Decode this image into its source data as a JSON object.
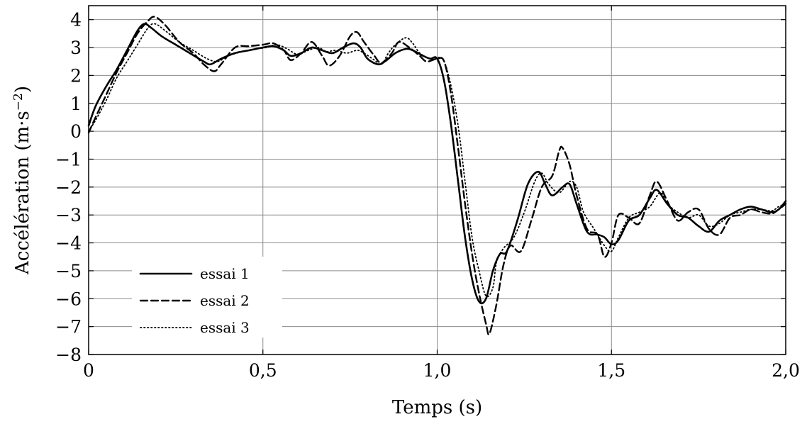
{
  "chart_data": {
    "type": "line",
    "xlabel": "Temps (s)",
    "ylabel_text": "Accélération (m·s",
    "ylabel_exponent": "−2",
    "ylabel_close": ")",
    "xlim": [
      0,
      2.0
    ],
    "ylim": [
      -8,
      4.5
    ],
    "xticks": [
      0,
      0.5,
      1.0,
      1.5,
      2.0
    ],
    "xtick_labels": [
      "0",
      "0,5",
      "1,0",
      "1,5",
      "2,0"
    ],
    "yticks": [
      4,
      3,
      2,
      1,
      0,
      -1,
      -2,
      -3,
      -4,
      -5,
      -6,
      -7,
      -8
    ],
    "ytick_labels": [
      "4",
      "3",
      "2",
      "1",
      "0",
      "−1",
      "−2",
      "−3",
      "−4",
      "−5",
      "−6",
      "−7",
      "−8"
    ],
    "grid": true,
    "legend_position": "bottom-left",
    "series": [
      {
        "name": "essai 1",
        "style": "solid",
        "x": [
          0,
          0.02,
          0.05,
          0.08,
          0.11,
          0.14,
          0.16,
          0.18,
          0.21,
          0.25,
          0.29,
          0.33,
          0.35,
          0.38,
          0.42,
          0.46,
          0.5,
          0.53,
          0.56,
          0.58,
          0.61,
          0.64,
          0.67,
          0.7,
          0.73,
          0.76,
          0.78,
          0.8,
          0.83,
          0.85,
          0.88,
          0.91,
          0.93,
          0.96,
          0.98,
          1.0,
          1.02,
          1.04,
          1.06,
          1.08,
          1.1,
          1.12,
          1.14,
          1.16,
          1.18,
          1.2,
          1.23,
          1.26,
          1.29,
          1.31,
          1.33,
          1.36,
          1.38,
          1.4,
          1.43,
          1.46,
          1.48,
          1.5,
          1.52,
          1.55,
          1.58,
          1.61,
          1.63,
          1.66,
          1.69,
          1.72,
          1.75,
          1.78,
          1.81,
          1.84,
          1.87,
          1.9,
          1.93,
          1.96,
          1.98,
          2.0
        ],
        "y": [
          0.2,
          0.9,
          1.6,
          2.2,
          2.9,
          3.6,
          3.85,
          3.7,
          3.4,
          3.1,
          2.8,
          2.5,
          2.4,
          2.6,
          2.8,
          2.9,
          3.0,
          3.05,
          2.9,
          2.7,
          2.8,
          3.0,
          2.9,
          2.8,
          3.0,
          3.15,
          3.0,
          2.6,
          2.4,
          2.5,
          2.8,
          2.95,
          2.9,
          2.7,
          2.6,
          2.6,
          1.8,
          0.2,
          -1.8,
          -3.8,
          -5.3,
          -6.1,
          -6.0,
          -5.0,
          -4.4,
          -4.3,
          -3.2,
          -1.9,
          -1.45,
          -1.9,
          -2.3,
          -2.0,
          -1.9,
          -2.6,
          -3.6,
          -3.7,
          -3.8,
          -4.05,
          -3.9,
          -3.2,
          -3.0,
          -2.4,
          -2.1,
          -2.6,
          -3.0,
          -3.1,
          -3.4,
          -3.6,
          -3.2,
          -3.0,
          -2.8,
          -2.7,
          -2.8,
          -2.9,
          -2.8,
          -2.5
        ]
      },
      {
        "name": "essai 2",
        "style": "dashed",
        "x": [
          0,
          0.02,
          0.05,
          0.08,
          0.11,
          0.14,
          0.17,
          0.19,
          0.22,
          0.26,
          0.3,
          0.33,
          0.36,
          0.38,
          0.42,
          0.46,
          0.5,
          0.53,
          0.56,
          0.58,
          0.61,
          0.64,
          0.67,
          0.69,
          0.72,
          0.75,
          0.77,
          0.79,
          0.82,
          0.84,
          0.87,
          0.89,
          0.92,
          0.95,
          0.97,
          1.0,
          1.02,
          1.04,
          1.06,
          1.08,
          1.1,
          1.12,
          1.14,
          1.15,
          1.17,
          1.19,
          1.21,
          1.24,
          1.27,
          1.3,
          1.33,
          1.35,
          1.36,
          1.38,
          1.4,
          1.43,
          1.46,
          1.48,
          1.5,
          1.52,
          1.55,
          1.58,
          1.61,
          1.63,
          1.66,
          1.69,
          1.72,
          1.75,
          1.78,
          1.81,
          1.84,
          1.87,
          1.9,
          1.93,
          1.96,
          1.98,
          2.0
        ],
        "y": [
          -0.05,
          0.5,
          1.3,
          2.1,
          2.8,
          3.5,
          3.95,
          4.1,
          3.8,
          3.2,
          2.8,
          2.4,
          2.15,
          2.4,
          3.0,
          3.05,
          3.1,
          3.15,
          2.9,
          2.55,
          2.8,
          3.2,
          2.7,
          2.35,
          2.7,
          3.4,
          3.55,
          3.2,
          2.7,
          2.45,
          2.8,
          3.2,
          3.0,
          2.7,
          2.5,
          2.6,
          2.5,
          1.3,
          -0.6,
          -2.6,
          -4.4,
          -5.8,
          -6.9,
          -7.25,
          -6.2,
          -4.8,
          -4.1,
          -4.3,
          -3.2,
          -2.0,
          -1.6,
          -0.7,
          -0.6,
          -1.2,
          -2.3,
          -3.5,
          -3.7,
          -4.5,
          -4.0,
          -3.0,
          -3.1,
          -3.3,
          -2.3,
          -1.8,
          -2.5,
          -3.2,
          -2.9,
          -2.8,
          -3.5,
          -3.7,
          -3.1,
          -3.0,
          -2.8,
          -2.9,
          -2.95,
          -2.8,
          -2.6
        ]
      },
      {
        "name": "essai 3",
        "style": "dotted",
        "x": [
          0,
          0.02,
          0.05,
          0.08,
          0.11,
          0.14,
          0.17,
          0.19,
          0.22,
          0.26,
          0.3,
          0.34,
          0.37,
          0.4,
          0.44,
          0.48,
          0.51,
          0.54,
          0.57,
          0.6,
          0.63,
          0.66,
          0.68,
          0.71,
          0.74,
          0.77,
          0.79,
          0.82,
          0.84,
          0.86,
          0.88,
          0.91,
          0.93,
          0.95,
          0.98,
          1.0,
          1.02,
          1.04,
          1.06,
          1.08,
          1.1,
          1.12,
          1.14,
          1.16,
          1.17,
          1.19,
          1.22,
          1.25,
          1.28,
          1.3,
          1.32,
          1.35,
          1.38,
          1.4,
          1.42,
          1.45,
          1.48,
          1.5,
          1.52,
          1.55,
          1.58,
          1.61,
          1.64,
          1.66,
          1.69,
          1.72,
          1.75,
          1.78,
          1.81,
          1.84,
          1.87,
          1.9,
          1.93,
          1.96,
          1.98,
          2.0
        ],
        "y": [
          0.0,
          0.4,
          1.1,
          1.9,
          2.5,
          3.1,
          3.7,
          3.85,
          3.6,
          3.2,
          2.9,
          2.6,
          2.5,
          2.7,
          2.85,
          2.95,
          3.0,
          3.1,
          2.95,
          2.75,
          2.9,
          3.0,
          2.85,
          2.9,
          2.8,
          2.9,
          2.8,
          2.55,
          2.4,
          2.8,
          3.1,
          3.35,
          3.15,
          2.8,
          2.6,
          2.65,
          2.5,
          1.6,
          0.2,
          -1.8,
          -3.8,
          -5.0,
          -5.9,
          -5.6,
          -4.7,
          -4.2,
          -3.8,
          -2.9,
          -1.8,
          -1.5,
          -1.9,
          -2.2,
          -1.8,
          -2.0,
          -2.9,
          -3.5,
          -4.1,
          -4.3,
          -3.8,
          -3.1,
          -2.9,
          -2.7,
          -2.2,
          -2.6,
          -2.9,
          -3.1,
          -3.0,
          -3.4,
          -3.3,
          -3.0,
          -2.9,
          -2.8,
          -2.8,
          -2.85,
          -2.7,
          -2.6
        ]
      }
    ]
  }
}
